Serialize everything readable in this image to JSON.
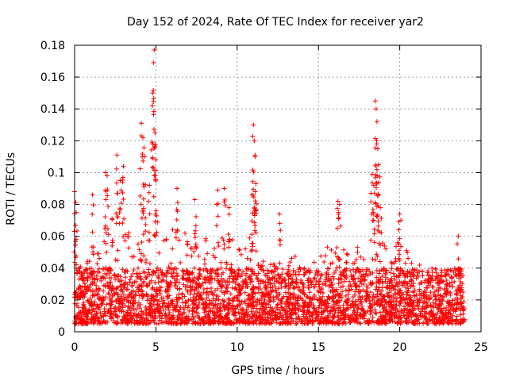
{
  "chart_data": {
    "type": "scatter",
    "title": "Day 152 of 2024, Rate Of TEC Index for receiver yar2",
    "xlabel": "GPS time / hours",
    "ylabel": "ROTI / TECUs",
    "xlim": [
      0,
      25
    ],
    "ylim": [
      0,
      0.18
    ],
    "xticks": [
      0,
      5,
      10,
      15,
      20,
      25
    ],
    "xtick_labels": [
      "0",
      "5",
      "10",
      "15",
      "20",
      "25"
    ],
    "yticks": [
      0,
      0.02,
      0.04,
      0.06,
      0.08,
      0.1,
      0.12,
      0.14,
      0.16,
      0.18
    ],
    "ytick_labels": [
      "0",
      "0.02",
      "0.04",
      "0.06",
      "0.08",
      "0.1",
      "0.12",
      "0.14",
      "0.16",
      "0.18"
    ],
    "grid": true,
    "marker": "plus",
    "color": "#ff0000",
    "series": [
      {
        "name": "ROTI",
        "x_range": [
          0,
          24
        ],
        "typical_range": [
          0.005,
          0.04
        ],
        "envelope": [
          [
            0,
            0.05
          ],
          [
            0.5,
            0.04
          ],
          [
            1,
            0.055
          ],
          [
            1.5,
            0.05
          ],
          [
            2,
            0.065
          ],
          [
            2.5,
            0.075
          ],
          [
            3,
            0.07
          ],
          [
            3.5,
            0.06
          ],
          [
            4,
            0.065
          ],
          [
            4.5,
            0.07
          ],
          [
            5,
            0.075
          ],
          [
            5.5,
            0.06
          ],
          [
            6,
            0.065
          ],
          [
            6.5,
            0.07
          ],
          [
            7,
            0.06
          ],
          [
            7.5,
            0.055
          ],
          [
            8,
            0.06
          ],
          [
            8.5,
            0.055
          ],
          [
            9,
            0.065
          ],
          [
            9.5,
            0.06
          ],
          [
            10,
            0.055
          ],
          [
            10.5,
            0.065
          ],
          [
            11,
            0.06
          ],
          [
            11.5,
            0.05
          ],
          [
            12,
            0.045
          ],
          [
            12.5,
            0.05
          ],
          [
            13,
            0.045
          ],
          [
            13.5,
            0.05
          ],
          [
            14,
            0.045
          ],
          [
            14.5,
            0.04
          ],
          [
            15,
            0.05
          ],
          [
            15.5,
            0.055
          ],
          [
            16,
            0.06
          ],
          [
            16.5,
            0.055
          ],
          [
            17,
            0.05
          ],
          [
            17.5,
            0.055
          ],
          [
            18,
            0.06
          ],
          [
            18.5,
            0.065
          ],
          [
            19,
            0.055
          ],
          [
            19.5,
            0.05
          ],
          [
            20,
            0.06
          ],
          [
            20.5,
            0.05
          ],
          [
            21,
            0.045
          ],
          [
            21.5,
            0.04
          ],
          [
            22,
            0.035
          ],
          [
            22.5,
            0.035
          ],
          [
            23,
            0.035
          ],
          [
            23.5,
            0.045
          ],
          [
            24,
            0.05
          ]
        ],
        "peaks": [
          [
            0.0,
            0.088
          ],
          [
            0.1,
            0.075
          ],
          [
            1.1,
            0.086
          ],
          [
            1.9,
            0.1
          ],
          [
            2.0,
            0.098
          ],
          [
            2.6,
            0.111
          ],
          [
            2.8,
            0.095
          ],
          [
            3.0,
            0.104
          ],
          [
            4.1,
            0.131
          ],
          [
            4.2,
            0.122
          ],
          [
            4.3,
            0.11
          ],
          [
            4.6,
            0.092
          ],
          [
            4.8,
            0.15
          ],
          [
            4.85,
            0.169
          ],
          [
            4.9,
            0.177
          ],
          [
            4.95,
            0.125
          ],
          [
            5.0,
            0.108
          ],
          [
            6.3,
            0.09
          ],
          [
            7.4,
            0.083
          ],
          [
            8.8,
            0.089
          ],
          [
            9.2,
            0.09
          ],
          [
            9.5,
            0.078
          ],
          [
            10.9,
            0.086
          ],
          [
            11.0,
            0.13
          ],
          [
            11.05,
            0.12
          ],
          [
            11.1,
            0.11
          ],
          [
            11.15,
            0.093
          ],
          [
            12.6,
            0.074
          ],
          [
            16.2,
            0.082
          ],
          [
            16.3,
            0.08
          ],
          [
            18.3,
            0.099
          ],
          [
            18.4,
            0.092
          ],
          [
            18.5,
            0.145
          ],
          [
            18.55,
            0.14
          ],
          [
            18.6,
            0.132
          ],
          [
            18.65,
            0.115
          ],
          [
            18.7,
            0.105
          ],
          [
            18.8,
            0.078
          ],
          [
            20.0,
            0.074
          ],
          [
            23.6,
            0.06
          ]
        ]
      }
    ]
  }
}
